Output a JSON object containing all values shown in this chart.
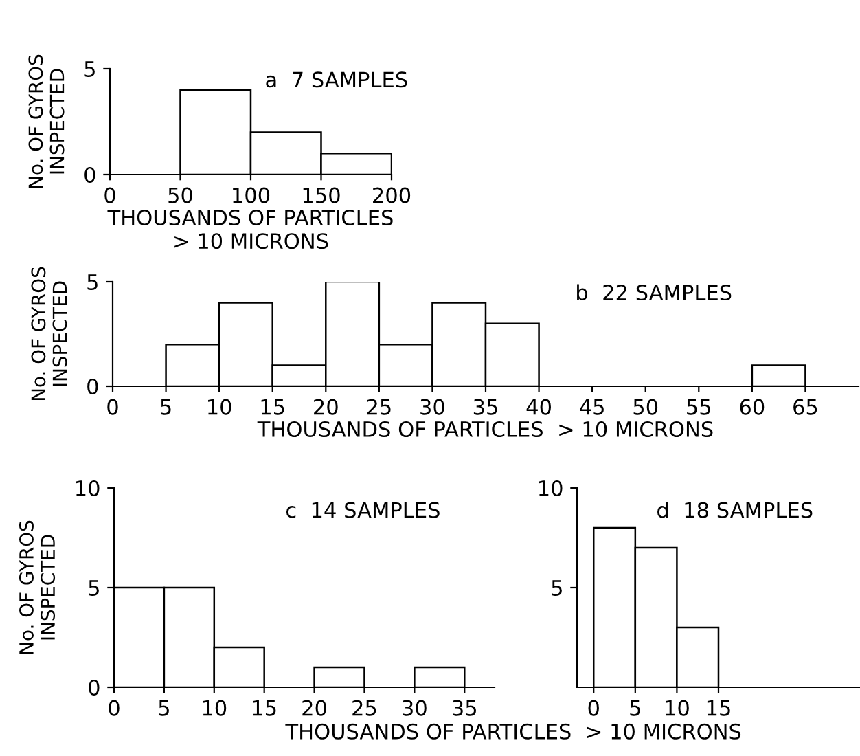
{
  "chart_data": [
    {
      "type": "histogram",
      "title": "a  7 SAMPLES",
      "xlabel": "THOUSANDS OF PARTICLES\n> 10 MICRONS",
      "ylabel": "No. OF GYROS\nINSPECTED",
      "bins": [
        0,
        50,
        100,
        150,
        200
      ],
      "values": [
        0,
        4,
        2,
        1
      ],
      "color": "#ffffff",
      "xlim": [
        0,
        200
      ],
      "xticks": [
        0,
        50,
        100,
        150,
        200
      ],
      "ylim": [
        0,
        5
      ],
      "yticks": [
        0,
        5
      ],
      "grid": false,
      "legend": false
    },
    {
      "type": "histogram",
      "title": "b  22 SAMPLES",
      "xlabel": "THOUSANDS OF PARTICLES  > 10 MICRONS",
      "ylabel": "No. OF GYROS\nINSPECTED",
      "bins": [
        0,
        5,
        10,
        15,
        20,
        25,
        30,
        35,
        40,
        45,
        50,
        55,
        60,
        65
      ],
      "values": [
        0,
        2,
        4,
        1,
        5,
        2,
        4,
        3,
        0,
        0,
        0,
        0,
        1
      ],
      "color": "#ffffff",
      "xlim": [
        0,
        70
      ],
      "xticks": [
        0,
        5,
        10,
        15,
        20,
        25,
        30,
        35,
        40,
        45,
        50,
        55,
        60,
        65
      ],
      "ylim": [
        0,
        5
      ],
      "yticks": [
        0,
        5
      ],
      "grid": false,
      "legend": false
    },
    {
      "type": "histogram",
      "title": "c  14 SAMPLES",
      "xlabel": "THOUSANDS OF PARTICLES  > 10 MICRONS",
      "ylabel": "No. OF GYROS\nINSPECTED",
      "bins": [
        0,
        5,
        10,
        15,
        20,
        25,
        30,
        35
      ],
      "values": [
        5,
        5,
        2,
        0,
        1,
        0,
        1
      ],
      "color": "#ffffff",
      "xlim": [
        0,
        38
      ],
      "xticks": [
        0,
        5,
        10,
        15,
        20,
        25,
        30,
        35
      ],
      "ylim": [
        0,
        10
      ],
      "yticks": [
        0,
        5,
        10
      ],
      "grid": false,
      "legend": false
    },
    {
      "type": "histogram",
      "title": "d  18 SAMPLES",
      "bins": [
        0,
        5,
        10,
        15
      ],
      "values": [
        8,
        7,
        3
      ],
      "color": "#ffffff",
      "xlim": [
        -2,
        32
      ],
      "xticks": [
        0,
        5,
        10,
        15
      ],
      "ylim": [
        0,
        10
      ],
      "yticks": [
        5,
        10
      ],
      "grid": false,
      "legend": false
    }
  ]
}
